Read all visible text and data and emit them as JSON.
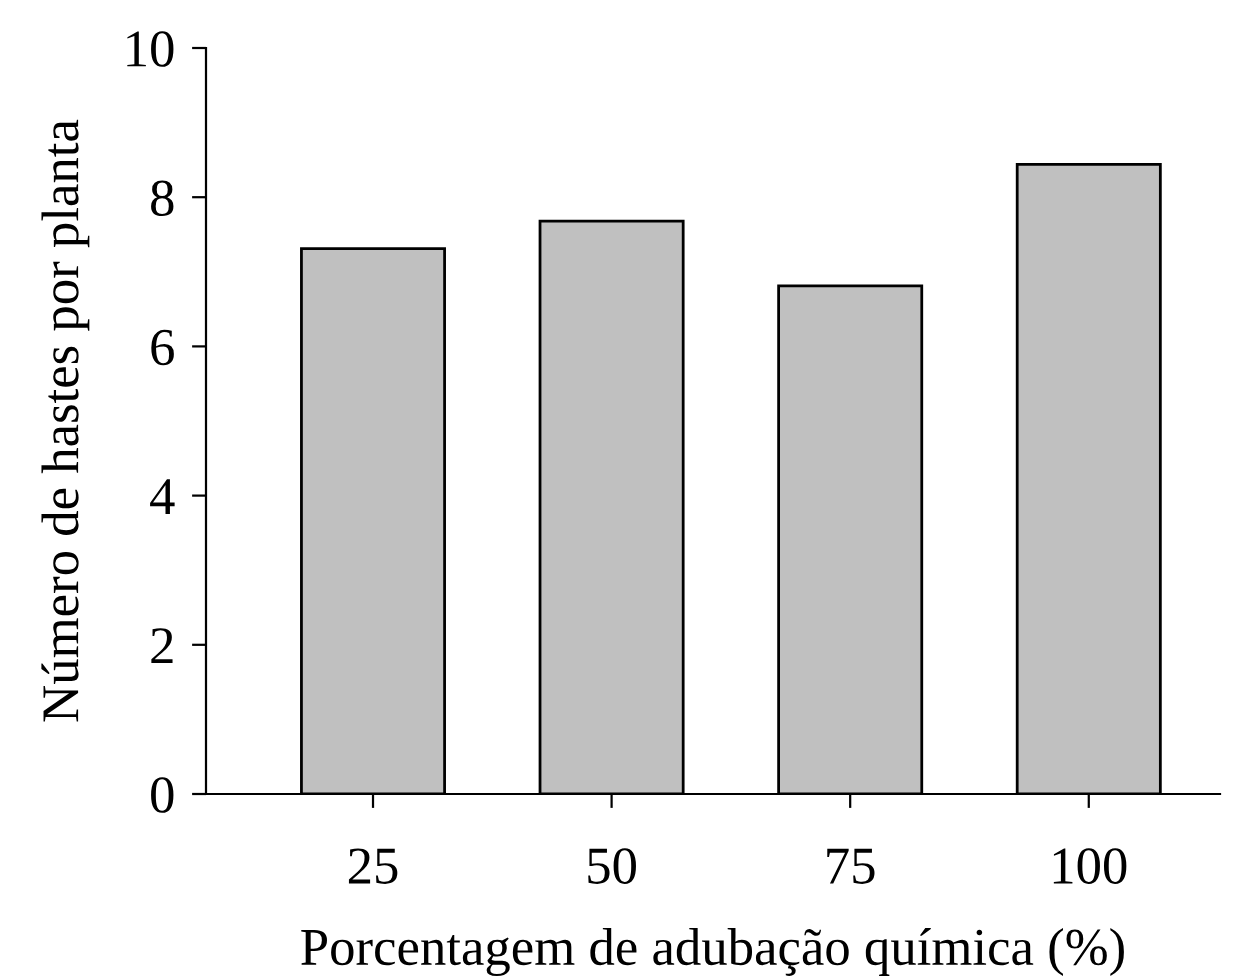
{
  "chart_data": {
    "type": "bar",
    "xlabel": "Porcentagem de adubação química (%)",
    "ylabel": "Número de hastes por planta",
    "categories": [
      "25",
      "50",
      "75",
      "100"
    ],
    "values": [
      7.31,
      7.68,
      6.81,
      8.44
    ],
    "color": "#c0c0c0",
    "ylim": [
      0,
      10
    ],
    "yticks": [
      0,
      2,
      4,
      6,
      8,
      10
    ],
    "grid": false,
    "legend": false
  }
}
